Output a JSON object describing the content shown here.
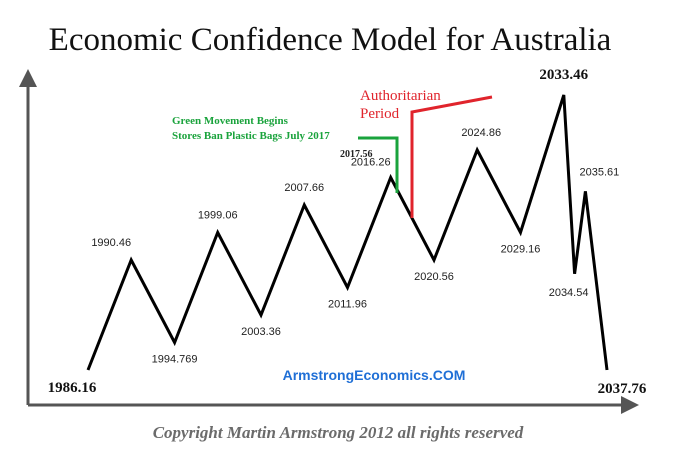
{
  "chart_data": {
    "type": "line",
    "title": "Economic Confidence Model for Australia",
    "points": [
      {
        "x": 1986.16,
        "level": 0
      },
      {
        "x": 1990.46,
        "level": 4
      },
      {
        "x": 1994.769,
        "level": 1
      },
      {
        "x": 1999.06,
        "level": 5
      },
      {
        "x": 2003.36,
        "level": 2
      },
      {
        "x": 2007.66,
        "level": 6
      },
      {
        "x": 2011.96,
        "level": 3
      },
      {
        "x": 2016.26,
        "level": 7
      },
      {
        "x": 2020.56,
        "level": 4
      },
      {
        "x": 2024.86,
        "level": 8
      },
      {
        "x": 2029.16,
        "level": 5
      },
      {
        "x": 2033.46,
        "level": 10
      },
      {
        "x": 2034.54,
        "level": 3.5
      },
      {
        "x": 2035.61,
        "level": 6.5
      },
      {
        "x": 2037.76,
        "level": 0
      }
    ],
    "labels": [
      "1986.16",
      "1990.46",
      "1994.769",
      "1999.06",
      "2003.36",
      "2007.66",
      "2011.96",
      "2016.26",
      "2020.56",
      "2024.86",
      "2029.16",
      "2033.46",
      "2034.54",
      "2035.61",
      "2037.76"
    ],
    "annotations": {
      "green": {
        "line1": "Green Movement Begins",
        "line2": "Stores Ban Plastic Bags July 2017",
        "year": "2017.56",
        "color": "#1aa33c"
      },
      "red": {
        "line1": "Authoritarian",
        "line2": "Period",
        "color": "#e0242c"
      }
    },
    "grid": false,
    "axes": "left and bottom arrows, no ticks"
  },
  "website": "ArmstrongEconomics.COM",
  "copyright": "Copyright Martin Armstrong 2012 all rights reserved"
}
